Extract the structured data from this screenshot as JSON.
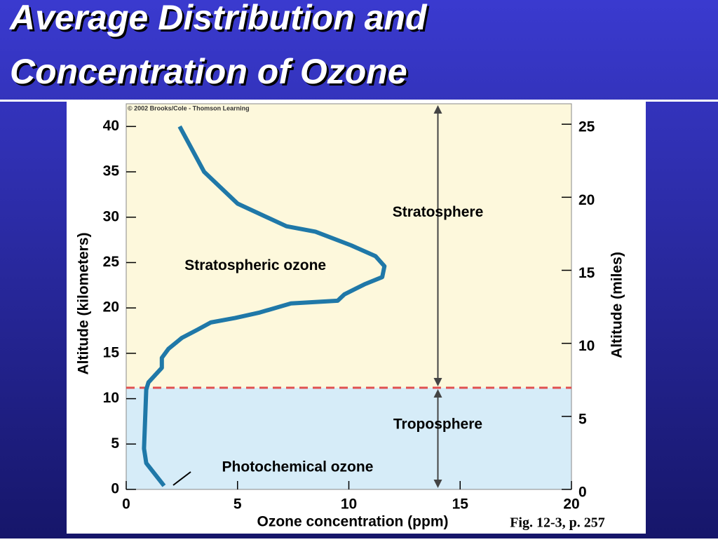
{
  "title": [
    "Average Distribution and",
    "Concentration of Ozone"
  ],
  "chart_data": {
    "type": "line",
    "credit": "© 2002 Brooks/Cole - Thomson Learning",
    "xlabel": "Ozone concentration (ppm)",
    "ylabel": "Altitude (kilometers)",
    "y2label": "Altitude (miles)",
    "figure_ref": "Fig. 12-3, p. 257",
    "xlim": [
      0,
      20
    ],
    "xticks": [
      0,
      5,
      10,
      15,
      20
    ],
    "ylim": [
      0,
      42.5
    ],
    "yticks": [
      0,
      5,
      10,
      15,
      20,
      25,
      30,
      35,
      40
    ],
    "y2lim": [
      0,
      26.4
    ],
    "y2ticks": [
      0,
      5,
      10,
      15,
      20,
      25
    ],
    "series": [
      {
        "color": "#1f78a8",
        "x": [
          2.4,
          3.5,
          5.0,
          7.2,
          8.5,
          10.1,
          11.2,
          11.6,
          11.5,
          10.7,
          9.8,
          9.5,
          7.4,
          6.0,
          4.9,
          3.8,
          3.2,
          2.5,
          1.9,
          1.6,
          1.6,
          1.0,
          0.9,
          0.8,
          0.9,
          1.7
        ],
        "values": [
          40,
          35,
          31.5,
          29,
          28.4,
          26.9,
          25.7,
          24.6,
          23.4,
          22.6,
          21.5,
          20.8,
          20.5,
          19.5,
          18.9,
          18.4,
          17.6,
          16.7,
          15.5,
          14.5,
          13.4,
          11.8,
          11.0,
          4.5,
          2.9,
          0.4
        ]
      }
    ],
    "reference_line": {
      "y": 11.2,
      "color": "#e05050"
    },
    "upper_fill": "#fdf8dc",
    "lower_fill": "#d6ecf8",
    "annotations": [
      {
        "text": "Stratosphere",
        "x": 14,
        "y": 30.5
      },
      {
        "text": "Stratospheric ozone",
        "x": 5.8,
        "y": 24.6
      },
      {
        "text": "Troposphere",
        "x": 14,
        "y": 7.1
      },
      {
        "text": "Photochemical ozone",
        "x": 7.7,
        "y": 2.4
      }
    ]
  }
}
